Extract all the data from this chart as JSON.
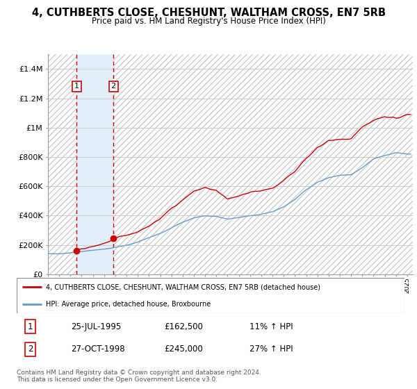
{
  "title": "4, CUTHBERTS CLOSE, CHESHUNT, WALTHAM CROSS, EN7 5RB",
  "subtitle": "Price paid vs. HM Land Registry's House Price Index (HPI)",
  "legend_line1": "4, CUTHBERTS CLOSE, CHESHUNT, WALTHAM CROSS, EN7 5RB (detached house)",
  "legend_line2": "HPI: Average price, detached house, Broxbourne",
  "transaction1_label": "1",
  "transaction1_date": "25-JUL-1995",
  "transaction1_price": "£162,500",
  "transaction1_hpi": "11% ↑ HPI",
  "transaction2_label": "2",
  "transaction2_date": "27-OCT-1998",
  "transaction2_price": "£245,000",
  "transaction2_hpi": "27% ↑ HPI",
  "footnote": "Contains HM Land Registry data © Crown copyright and database right 2024.\nThis data is licensed under the Open Government Licence v3.0.",
  "ylim": [
    0,
    1500000
  ],
  "yticks": [
    0,
    200000,
    400000,
    600000,
    800000,
    1000000,
    1200000,
    1400000
  ],
  "ytick_labels": [
    "£0",
    "£200K",
    "£400K",
    "£600K",
    "£800K",
    "£1M",
    "£1.2M",
    "£1.4M"
  ],
  "line_color_red": "#cc0000",
  "line_color_blue": "#6699cc",
  "transaction_dot_color": "#cc0000",
  "shaded_region_color": "#d6e8f7",
  "grid_color": "#cccccc",
  "transaction1_x": 1995.56,
  "transaction2_x": 1998.83,
  "transaction1_y": 162500,
  "transaction2_y": 245000,
  "xmin": 1993.0,
  "xmax": 2025.5
}
